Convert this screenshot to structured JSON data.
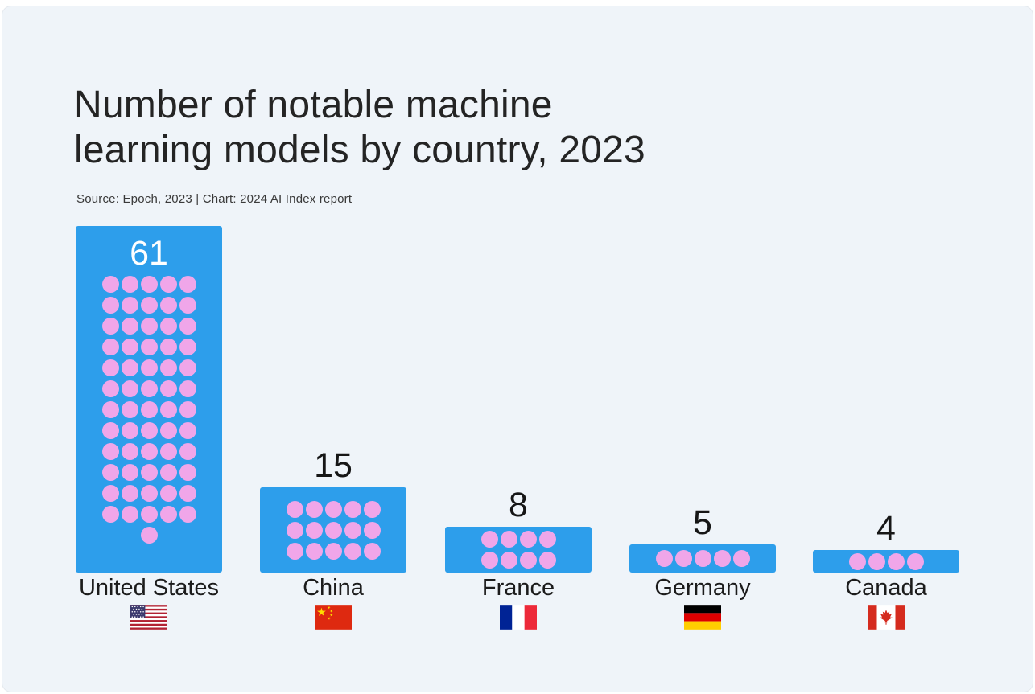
{
  "header": {
    "title": "Number of notable machine learning models by country, 2023",
    "title_line1": "Number of notable machine",
    "title_line2": "learning models by country, 2023",
    "source": "Source: Epoch, 2023 | Chart: 2024 AI Index report"
  },
  "colors": {
    "background": "#eff4f9",
    "page_edge": "#ffffff",
    "bar_blue": "#2d9eeb",
    "dot_pink": "#f0a6e9",
    "title_text": "#242424",
    "source_text": "#3a3a3a",
    "value_label_dark": "#161616",
    "value_label_light": "#ffffff",
    "country_label": "#1c1c1c"
  },
  "chart_data": {
    "type": "bar",
    "style": "pictogram bars with one dot per unit",
    "orientation": "vertical",
    "title": "Number of notable machine learning models by country, 2023",
    "source": "Source: Epoch, 2023 | Chart: 2024 AI Index report",
    "year": 2023,
    "value_unit": "notable machine learning models",
    "categories": [
      "United States",
      "China",
      "France",
      "Germany",
      "Canada"
    ],
    "values": [
      61,
      15,
      8,
      5,
      4
    ],
    "ylim": [
      0,
      61
    ],
    "grid": false,
    "legend": false,
    "series": [
      {
        "country": "United States",
        "value": 61,
        "dots_per_row": 5,
        "value_label_position": "inside-top",
        "flag_icon": "united-states-flag-icon"
      },
      {
        "country": "China",
        "value": 15,
        "dots_per_row": 5,
        "value_label_position": "above",
        "flag_icon": "china-flag-icon"
      },
      {
        "country": "France",
        "value": 8,
        "dots_per_row": 4,
        "value_label_position": "above",
        "flag_icon": "france-flag-icon"
      },
      {
        "country": "Germany",
        "value": 5,
        "dots_per_row": 5,
        "value_label_position": "above",
        "flag_icon": "germany-flag-icon"
      },
      {
        "country": "Canada",
        "value": 4,
        "dots_per_row": 4,
        "value_label_position": "above",
        "flag_icon": "canada-flag-icon"
      }
    ]
  }
}
